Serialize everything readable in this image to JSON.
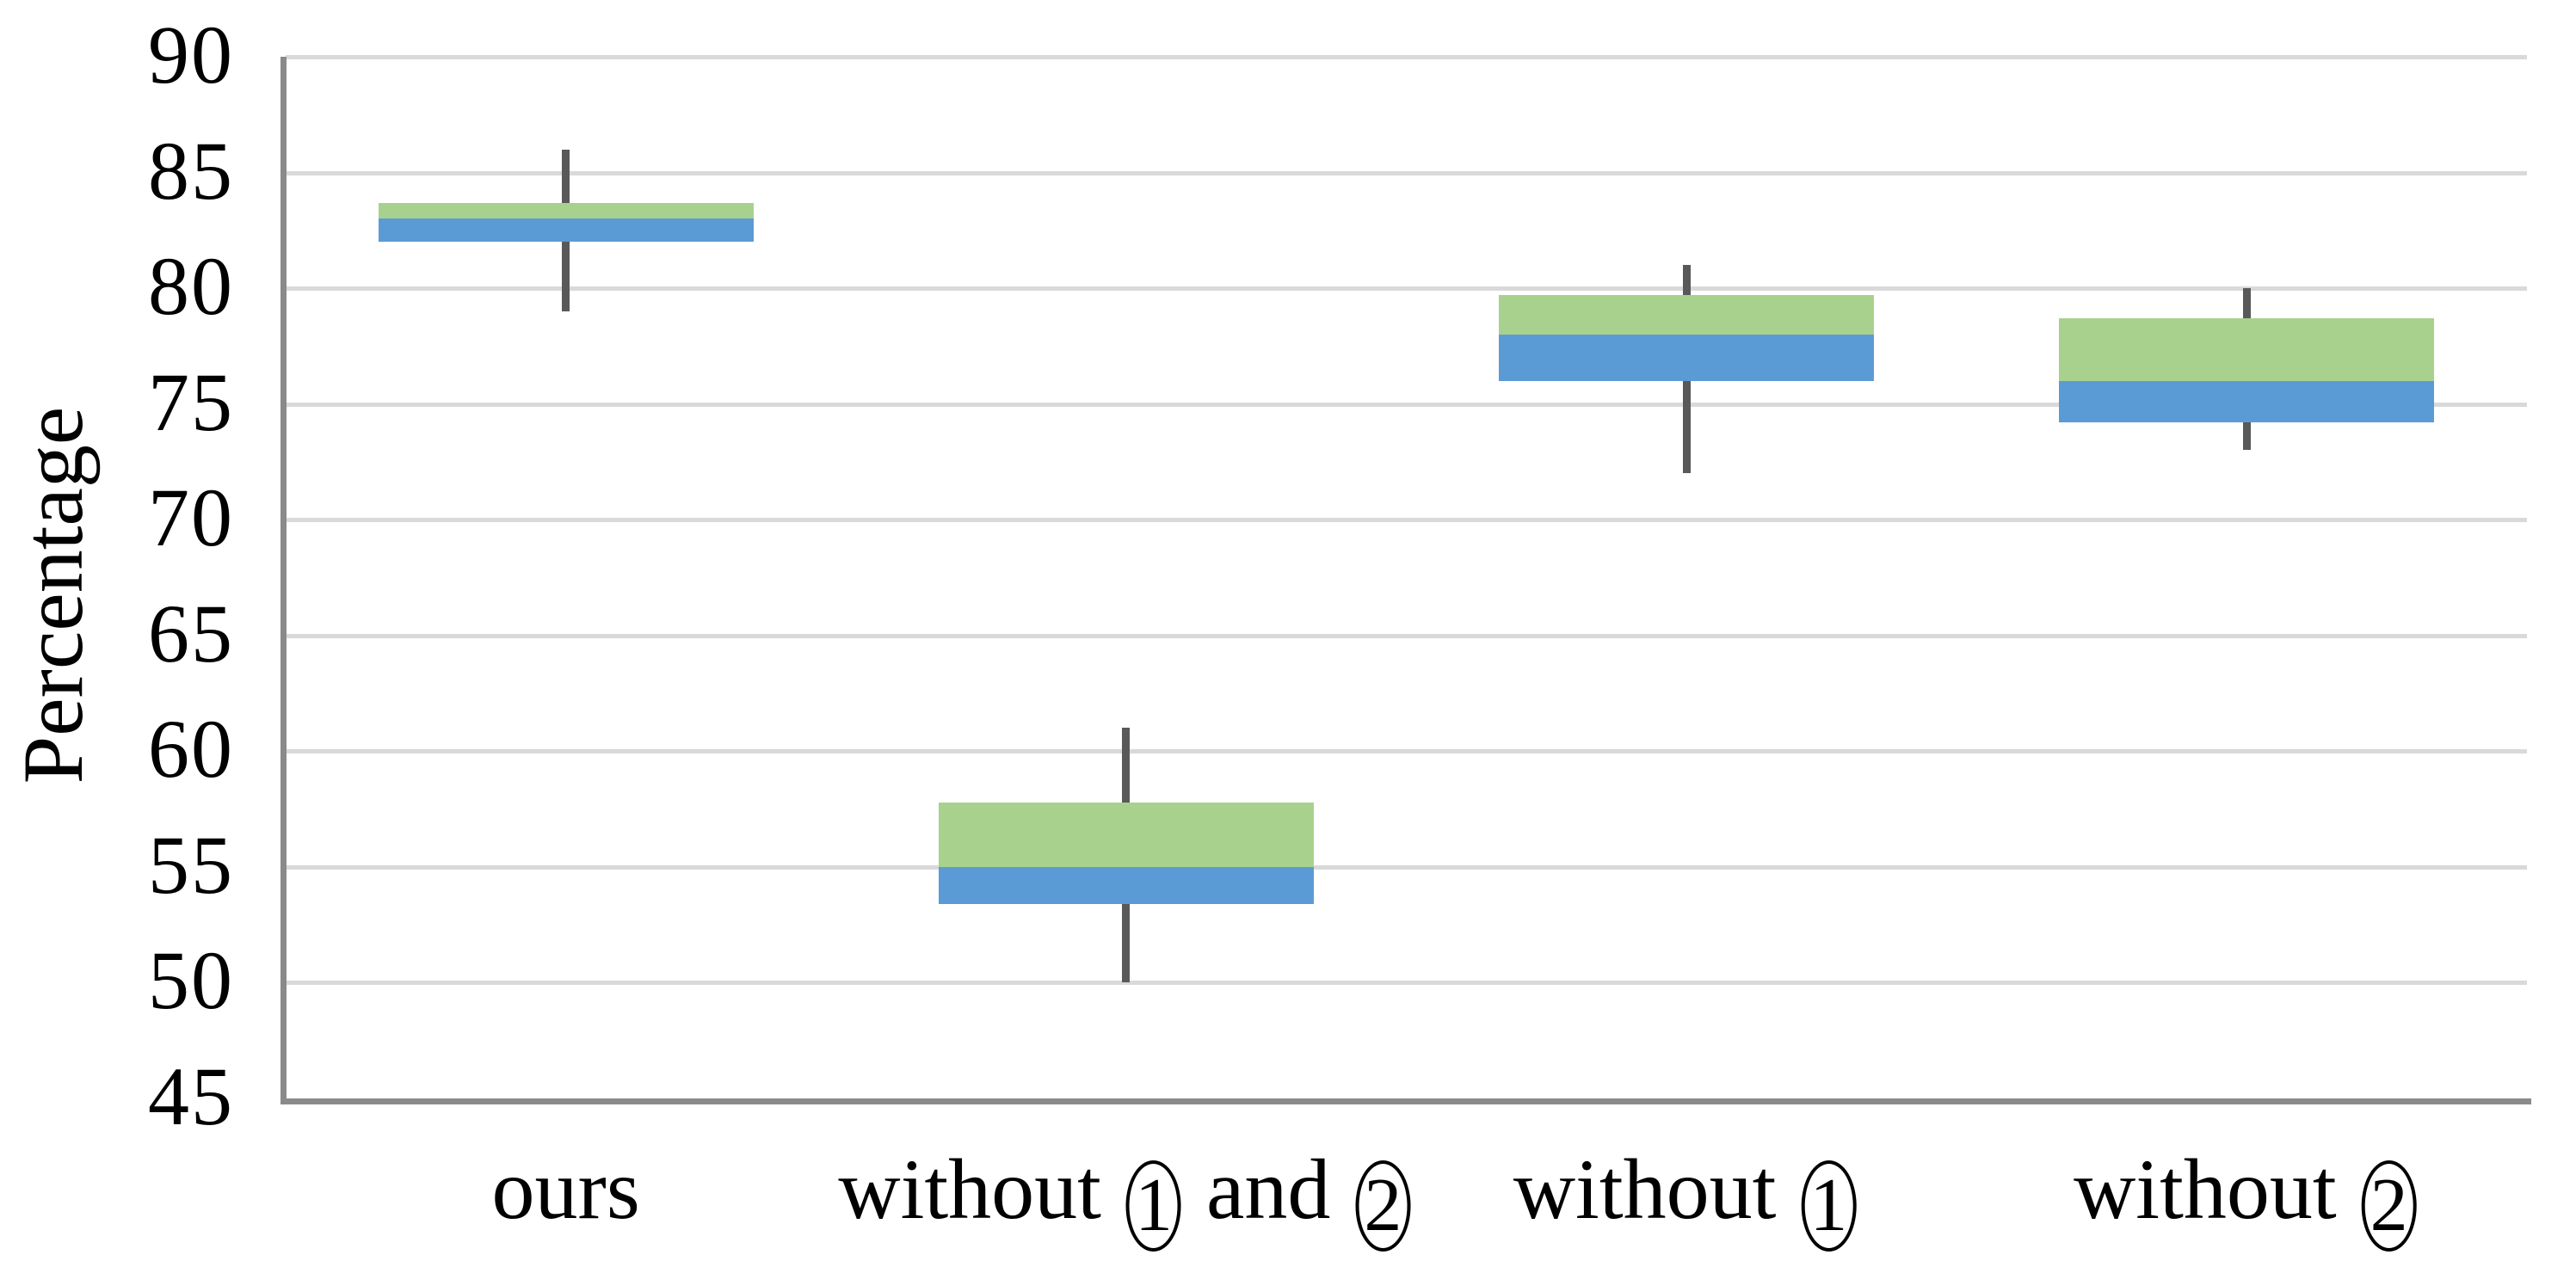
{
  "chart_data": {
    "type": "box",
    "title": "",
    "xlabel": "",
    "ylabel": "Percentage",
    "legend_position": "none",
    "grid": "horizontal",
    "y_axis": {
      "min": 45,
      "max": 90,
      "step": 5,
      "tick_labels": [
        "90",
        "85",
        "80",
        "75",
        "70",
        "65",
        "60",
        "55",
        "50",
        "45"
      ]
    },
    "categories": [
      {
        "label_text": "ours",
        "label_segments": [
          {
            "type": "text",
            "value": "ours"
          }
        ],
        "min": 79,
        "q1": 82,
        "median": 83,
        "q3": 83.7,
        "max": 86
      },
      {
        "label_text": "without ① and ②",
        "label_segments": [
          {
            "type": "text",
            "value": "without "
          },
          {
            "type": "circled",
            "value": "1"
          },
          {
            "type": "text",
            "value": " and "
          },
          {
            "type": "circled",
            "value": "2"
          }
        ],
        "min": 50,
        "q1": 53.4,
        "median": 55,
        "q3": 57.8,
        "max": 61
      },
      {
        "label_text": "without ①",
        "label_segments": [
          {
            "type": "text",
            "value": "without "
          },
          {
            "type": "circled",
            "value": "1"
          }
        ],
        "min": 72,
        "q1": 76,
        "median": 78,
        "q3": 79.7,
        "max": 81
      },
      {
        "label_text": "without ②",
        "label_segments": [
          {
            "type": "text",
            "value": "without "
          },
          {
            "type": "circled",
            "value": "2"
          }
        ],
        "min": 73,
        "q1": 74.2,
        "median": 76,
        "q3": 78.7,
        "max": 80
      }
    ],
    "series_meaning": {
      "green_segment": "median to third quartile",
      "blue_segment": "first quartile to median",
      "whisker": "min to max"
    },
    "colors": {
      "upper_box_green": "#a9d18e",
      "lower_box_blue": "#5b9bd5",
      "whisker_gray": "#595959",
      "gridline_gray": "#d9d9d9",
      "axis_gray": "#8a8a8a",
      "text_black": "#000000",
      "background": "#ffffff"
    }
  }
}
